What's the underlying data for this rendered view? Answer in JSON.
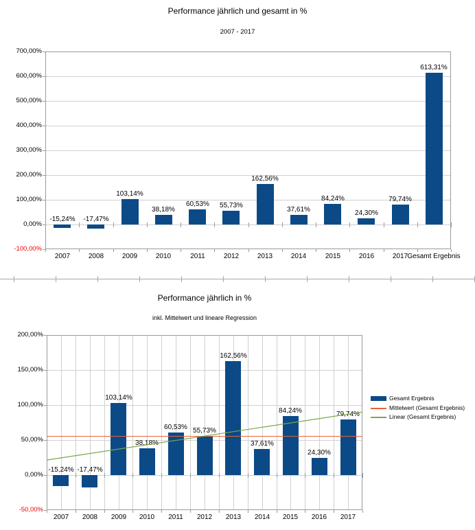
{
  "colors": {
    "bar": "#0b4a87",
    "mean_line": "#e8633c",
    "linear_line": "#7da647",
    "negative_axis_label": "#ee0000",
    "gridline": "#d0d0d0",
    "axis": "#9a9a9a"
  },
  "chart_data": [
    {
      "type": "bar",
      "title": "Performance jährlich und gesamt in %",
      "subtitle": "2007 - 2017",
      "categories": [
        "2007",
        "2008",
        "2009",
        "2010",
        "2011",
        "2012",
        "2013",
        "2014",
        "2015",
        "2016",
        "2017",
        "Gesamt Ergebnis"
      ],
      "values": [
        -15.24,
        -17.47,
        103.14,
        38.18,
        60.53,
        55.73,
        162.56,
        37.61,
        84.24,
        24.3,
        79.74,
        613.31
      ],
      "value_labels": [
        "-15,24%",
        "-17,47%",
        "103,14%",
        "38,18%",
        "60,53%",
        "55,73%",
        "162,56%",
        "37,61%",
        "84,24%",
        "24,30%",
        "79,74%",
        "613,31%"
      ],
      "ylim": [
        -100,
        700
      ],
      "ytick_step": 100,
      "ytick_labels": [
        "700,00%",
        "600,00%",
        "500,00%",
        "400,00%",
        "300,00%",
        "200,00%",
        "100,00%",
        "0,00%",
        "-100,00%"
      ],
      "grid": "horizontal",
      "legend_position": "none"
    },
    {
      "type": "bar",
      "title": "Performance jährlich in %",
      "subtitle": "inkl. Mittelwert und lineare Regression",
      "categories": [
        "2007",
        "2008",
        "2009",
        "2010",
        "2011",
        "2012",
        "2013",
        "2014",
        "2015",
        "2016",
        "2017"
      ],
      "values": [
        -15.24,
        -17.47,
        103.14,
        38.18,
        60.53,
        55.73,
        162.56,
        37.61,
        84.24,
        24.3,
        79.74
      ],
      "value_labels": [
        "-15,24%",
        "-17,47%",
        "103,14%",
        "38,18%",
        "60,53%",
        "55,73%",
        "162,56%",
        "37,61%",
        "84,24%",
        "24,30%",
        "79,74%"
      ],
      "ylim": [
        -50,
        200
      ],
      "ytick_step": 50,
      "ytick_labels": [
        "200,00%",
        "150,00%",
        "100,00%",
        "50,00%",
        "0,00%",
        "-50,00%"
      ],
      "grid": "both",
      "legend_position": "right",
      "series": [
        {
          "name": "Gesamt Ergebnis",
          "type": "bar",
          "color": "#0b4a87"
        },
        {
          "name": "Mittelwert (Gesamt Ergebnis)",
          "type": "line",
          "color": "#e8633c",
          "value": 55.76
        },
        {
          "name": "Linear (Gesamt Ergebnis)",
          "type": "line",
          "color": "#7da647",
          "value_at_left_edge": 21.45,
          "value_at_right_edge": 90.07
        }
      ]
    }
  ]
}
